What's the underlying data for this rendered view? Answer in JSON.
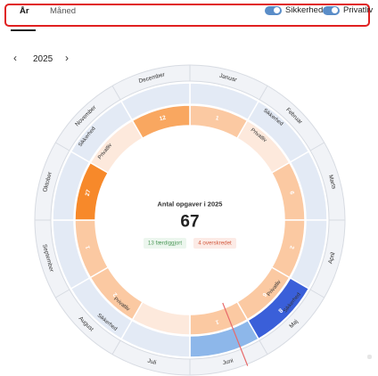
{
  "tabs": [
    {
      "label": "År",
      "active": true
    },
    {
      "label": "Måned",
      "active": false
    }
  ],
  "toggles": [
    {
      "label": "Sikkerhed",
      "on": true
    },
    {
      "label": "Privatliv",
      "on": true
    }
  ],
  "year_nav": {
    "year": "2025",
    "prev_icon": "chevron-left-icon",
    "next_icon": "chevron-right-icon"
  },
  "center": {
    "title": "Antal opgaver i 2025",
    "total": "67",
    "completed_badge": "13 færdiggjort",
    "overdue_badge": "4 overskredet"
  },
  "colors": {
    "outer_ring": "#f1f3f7",
    "outer_ring_border": "#d7dbe2",
    "sikkerhed_light": "#e3eaf5",
    "sikkerhed_mid": "#8db7ea",
    "sikkerhed_dark": "#3a5fd9",
    "privatliv_pale": "#fde9dc",
    "privatliv_light": "#fbc9a2",
    "privatliv_mid": "#f9a760",
    "privatliv_dark": "#f7892a",
    "today_line": "#e86a6a",
    "completed_text": "#4f9a5b",
    "completed_bg": "#ecf6ee",
    "overdue_text": "#d2593e",
    "overdue_bg": "#fcebe6"
  },
  "months": [
    "Januar",
    "Februar",
    "Marts",
    "April",
    "Maj",
    "Juni",
    "Juli",
    "August",
    "September",
    "Oktober",
    "November",
    "December"
  ],
  "category_labels": {
    "sikkerhed": "Sikkerhed",
    "privatliv": "Privatliv"
  },
  "sikkerhed_ring": [
    {
      "value": "",
      "shade": "light",
      "label": ""
    },
    {
      "value": "",
      "shade": "light",
      "label": "Sikkerhed"
    },
    {
      "value": "",
      "shade": "light",
      "label": ""
    },
    {
      "value": "",
      "shade": "light",
      "label": ""
    },
    {
      "value": "8",
      "shade": "dark",
      "label": "Sikkerhed"
    },
    {
      "value": "",
      "shade": "mid",
      "label": ""
    },
    {
      "value": "",
      "shade": "light",
      "label": ""
    },
    {
      "value": "",
      "shade": "light",
      "label": "Sikkerhed"
    },
    {
      "value": "",
      "shade": "light",
      "label": ""
    },
    {
      "value": "",
      "shade": "light",
      "label": ""
    },
    {
      "value": "",
      "shade": "light",
      "label": "Sikkerhed"
    },
    {
      "value": "",
      "shade": "light",
      "label": ""
    }
  ],
  "privatliv_ring": [
    {
      "value": "1",
      "shade": "light",
      "label": ""
    },
    {
      "value": "",
      "shade": "pale",
      "label": "Privatliv"
    },
    {
      "value": "6",
      "shade": "light",
      "label": ""
    },
    {
      "value": "2",
      "shade": "light",
      "label": ""
    },
    {
      "value": "6",
      "shade": "light",
      "label": "Privatliv"
    },
    {
      "value": "1",
      "shade": "light",
      "label": ""
    },
    {
      "value": "",
      "shade": "pale",
      "label": ""
    },
    {
      "value": "2",
      "shade": "light",
      "label": "Privatliv"
    },
    {
      "value": "1",
      "shade": "light",
      "label": ""
    },
    {
      "value": "27",
      "shade": "dark",
      "label": ""
    },
    {
      "value": "",
      "shade": "pale",
      "label": "Privatliv"
    },
    {
      "value": "12",
      "shade": "mid",
      "label": ""
    }
  ],
  "today_fraction_of_year": 0.44
}
